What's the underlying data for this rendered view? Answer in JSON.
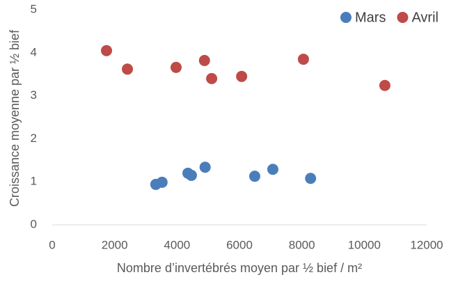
{
  "chart_data": {
    "type": "scatter",
    "xlabel": "Nombre d’invertébrés moyen par ½ bief / m²",
    "ylabel": "Croissance moyenne par ½ bief",
    "xlim": [
      0,
      12000
    ],
    "xticks": [
      0,
      2000,
      4000,
      6000,
      8000,
      10000,
      12000
    ],
    "ylim": [
      0,
      5
    ],
    "yticks": [
      0,
      1,
      2,
      3,
      4,
      5
    ],
    "grid": false,
    "legend": "top-right",
    "series": [
      {
        "name": "Mars",
        "color": "#4a7ebb",
        "x": [
          3320,
          3520,
          4350,
          4460,
          4900,
          6490,
          7070,
          8280
        ],
        "values": [
          0.94,
          0.99,
          1.2,
          1.15,
          1.34,
          1.13,
          1.29,
          1.08
        ]
      },
      {
        "name": "Avril",
        "color": "#be4b48",
        "x": [
          1740,
          2410,
          3970,
          4880,
          5110,
          6070,
          8050,
          10660
        ],
        "values": [
          4.05,
          3.62,
          3.66,
          3.82,
          3.4,
          3.45,
          3.85,
          3.24
        ]
      }
    ]
  }
}
